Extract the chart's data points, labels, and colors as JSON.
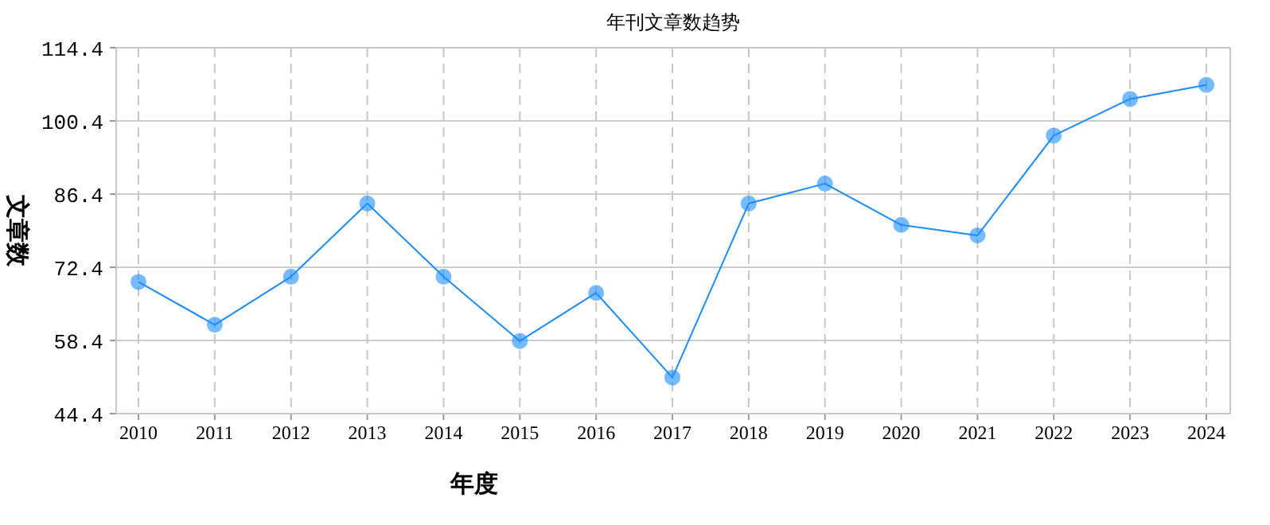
{
  "chart_data": {
    "type": "line",
    "title": "年刊文章数趋势",
    "xlabel": "年度",
    "ylabel": "文章数",
    "categories": [
      "2010",
      "2011",
      "2012",
      "2013",
      "2014",
      "2015",
      "2016",
      "2017",
      "2018",
      "2019",
      "2020",
      "2021",
      "2022",
      "2023",
      "2024"
    ],
    "series": [
      {
        "color": "#1a8cff",
        "values": [
          69.6,
          61.4,
          70.6,
          84.6,
          70.6,
          58.3,
          67.5,
          51.3,
          84.6,
          88.4,
          80.5,
          78.5,
          97.6,
          104.6,
          107.3
        ]
      }
    ],
    "ylim": [
      44.4,
      114.4
    ],
    "yticks": [
      44.4,
      58.4,
      72.4,
      86.4,
      100.4,
      114.4
    ],
    "grid": true,
    "marker": "circle",
    "line_style": "solid"
  }
}
